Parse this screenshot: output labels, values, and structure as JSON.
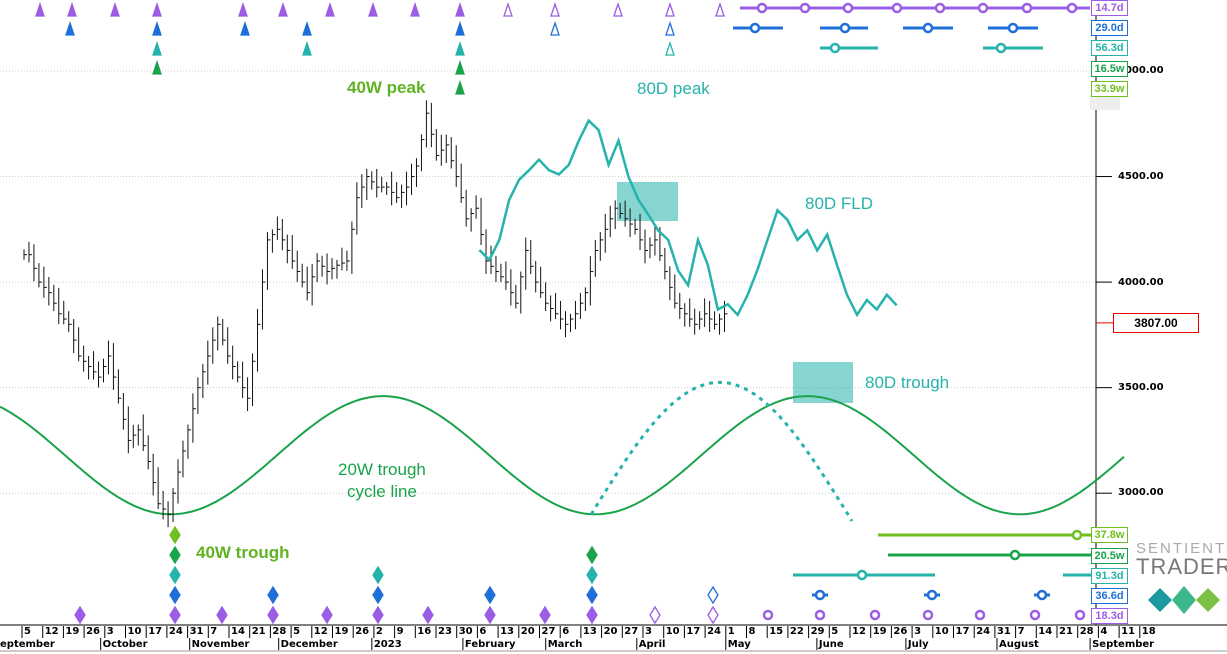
{
  "chart_data": {
    "type": "ohlc",
    "title": "",
    "x_unit": "weeks since 2022-09-05",
    "y_axis": {
      "ticks": [
        5000,
        4500,
        4000,
        3500,
        3000
      ],
      "tick_labels": [
        "5000.00",
        "4500.00",
        "4000.00",
        "3500.00",
        "3000.00"
      ],
      "ylim": [
        2550,
        5330
      ]
    },
    "x_axis": {
      "day_ticks": [
        "5",
        "12",
        "19",
        "26",
        "3",
        "10",
        "17",
        "24",
        "31",
        "7",
        "14",
        "21",
        "28",
        "5",
        "12",
        "19",
        "26",
        "2",
        "9",
        "16",
        "23",
        "30",
        "6",
        "13",
        "20",
        "27",
        "6",
        "13",
        "20",
        "27",
        "3",
        "10",
        "17",
        "24",
        "1",
        "8",
        "15",
        "22",
        "29",
        "5",
        "12",
        "19",
        "26",
        "3",
        "10",
        "17",
        "24",
        "31",
        "7",
        "14",
        "21",
        "28",
        "4",
        "11",
        "18"
      ],
      "months": [
        {
          "label": "eptember",
          "week": 0
        },
        {
          "label": "October",
          "week": 3.8
        },
        {
          "label": "November",
          "week": 8.1
        },
        {
          "label": "December",
          "week": 12.4
        },
        {
          "label": "2023",
          "week": 16.9
        },
        {
          "label": "February",
          "week": 21.3
        },
        {
          "label": "March",
          "week": 25.3
        },
        {
          "label": "April",
          "week": 29.7
        },
        {
          "label": "May",
          "week": 34.0
        },
        {
          "label": "June",
          "week": 38.4
        },
        {
          "label": "July",
          "week": 42.7
        },
        {
          "label": "August",
          "week": 47.1
        },
        {
          "label": "September",
          "week": 51.6
        }
      ]
    },
    "price": {
      "start_week": 0,
      "step_week": 0.48,
      "close": [
        4130,
        4000,
        3950,
        3850,
        3800,
        3650,
        3600,
        3550,
        3650,
        3450,
        3250,
        3300,
        3150,
        2950,
        2900,
        3100,
        3300,
        3500,
        3650,
        3800,
        3650,
        3550,
        3450,
        3800,
        4200,
        4250,
        4150,
        4050,
        3950,
        4100,
        4050,
        4080,
        4100,
        4400,
        4500,
        4450,
        4450,
        4400,
        4450,
        4550,
        4800,
        4600,
        4650,
        4500,
        4300,
        4350,
        4100,
        4050,
        4000,
        3900,
        4150,
        4000,
        3900,
        3850,
        3800,
        3850,
        3950,
        4150,
        4250,
        4350,
        4300,
        4250,
        4150,
        4200,
        4050,
        3900,
        3850,
        3800,
        3850,
        3800,
        3850
      ]
    },
    "current_price": "3807.00",
    "fld_80d": {
      "name": "80D FLD",
      "start_week": 22.0,
      "step_week": 0.48,
      "values": [
        4152,
        4105,
        4200,
        4390,
        4485,
        4530,
        4580,
        4530,
        4510,
        4555,
        4670,
        4765,
        4720,
        4555,
        4670,
        4500,
        4390,
        4320,
        4245,
        4200,
        4055,
        3985,
        4200,
        4080,
        3870,
        3895,
        3845,
        3940,
        4060,
        4200,
        4340,
        4295,
        4200,
        4245,
        4150,
        4225,
        4080,
        3940,
        3845,
        3915,
        3870,
        3940,
        3890
      ]
    },
    "cycle_line": {
      "name": "20W trough cycle line",
      "period_weeks": 20.5,
      "trough_week": 7.1,
      "high": 3460,
      "low": 2900
    },
    "projected_arc": {
      "start_week": 27.4,
      "peak_week": 33.6,
      "end_week": 40.1,
      "peak": 3525,
      "low": 2900
    },
    "annotations": [
      {
        "text": "40W peak",
        "color": "#5fb323"
      },
      {
        "text": "80D peak",
        "color": "#25b3ab"
      },
      {
        "text": "80D FLD",
        "color": "#25b3ab"
      },
      {
        "text": "80D trough",
        "color": "#25b3ab"
      },
      {
        "text": "20W trough\ncycle line",
        "color": "#1aa34a"
      },
      {
        "text": "40W trough",
        "color": "#5fb323"
      }
    ],
    "cycle_boxes_top": [
      {
        "label": "14.7d",
        "color": "#9b5de5"
      },
      {
        "label": "29.0d",
        "color": "#1f6fd8"
      },
      {
        "label": "56.3d",
        "color": "#25b3ab"
      },
      {
        "label": "16.5w",
        "color": "#1aa34a"
      },
      {
        "label": "33.9w",
        "color": "#6fbf1f"
      }
    ],
    "cycle_boxes_bottom": [
      {
        "label": "37.8w",
        "color": "#6fbf1f"
      },
      {
        "label": "20.5w",
        "color": "#1aa34a"
      },
      {
        "label": "91.3d",
        "color": "#25b3ab"
      },
      {
        "label": "36.6d",
        "color": "#1f6fd8"
      },
      {
        "label": "18.3d",
        "color": "#9b5de5"
      }
    ]
  },
  "logo": {
    "line1": "SENTIENT",
    "line2": "TRADER"
  }
}
